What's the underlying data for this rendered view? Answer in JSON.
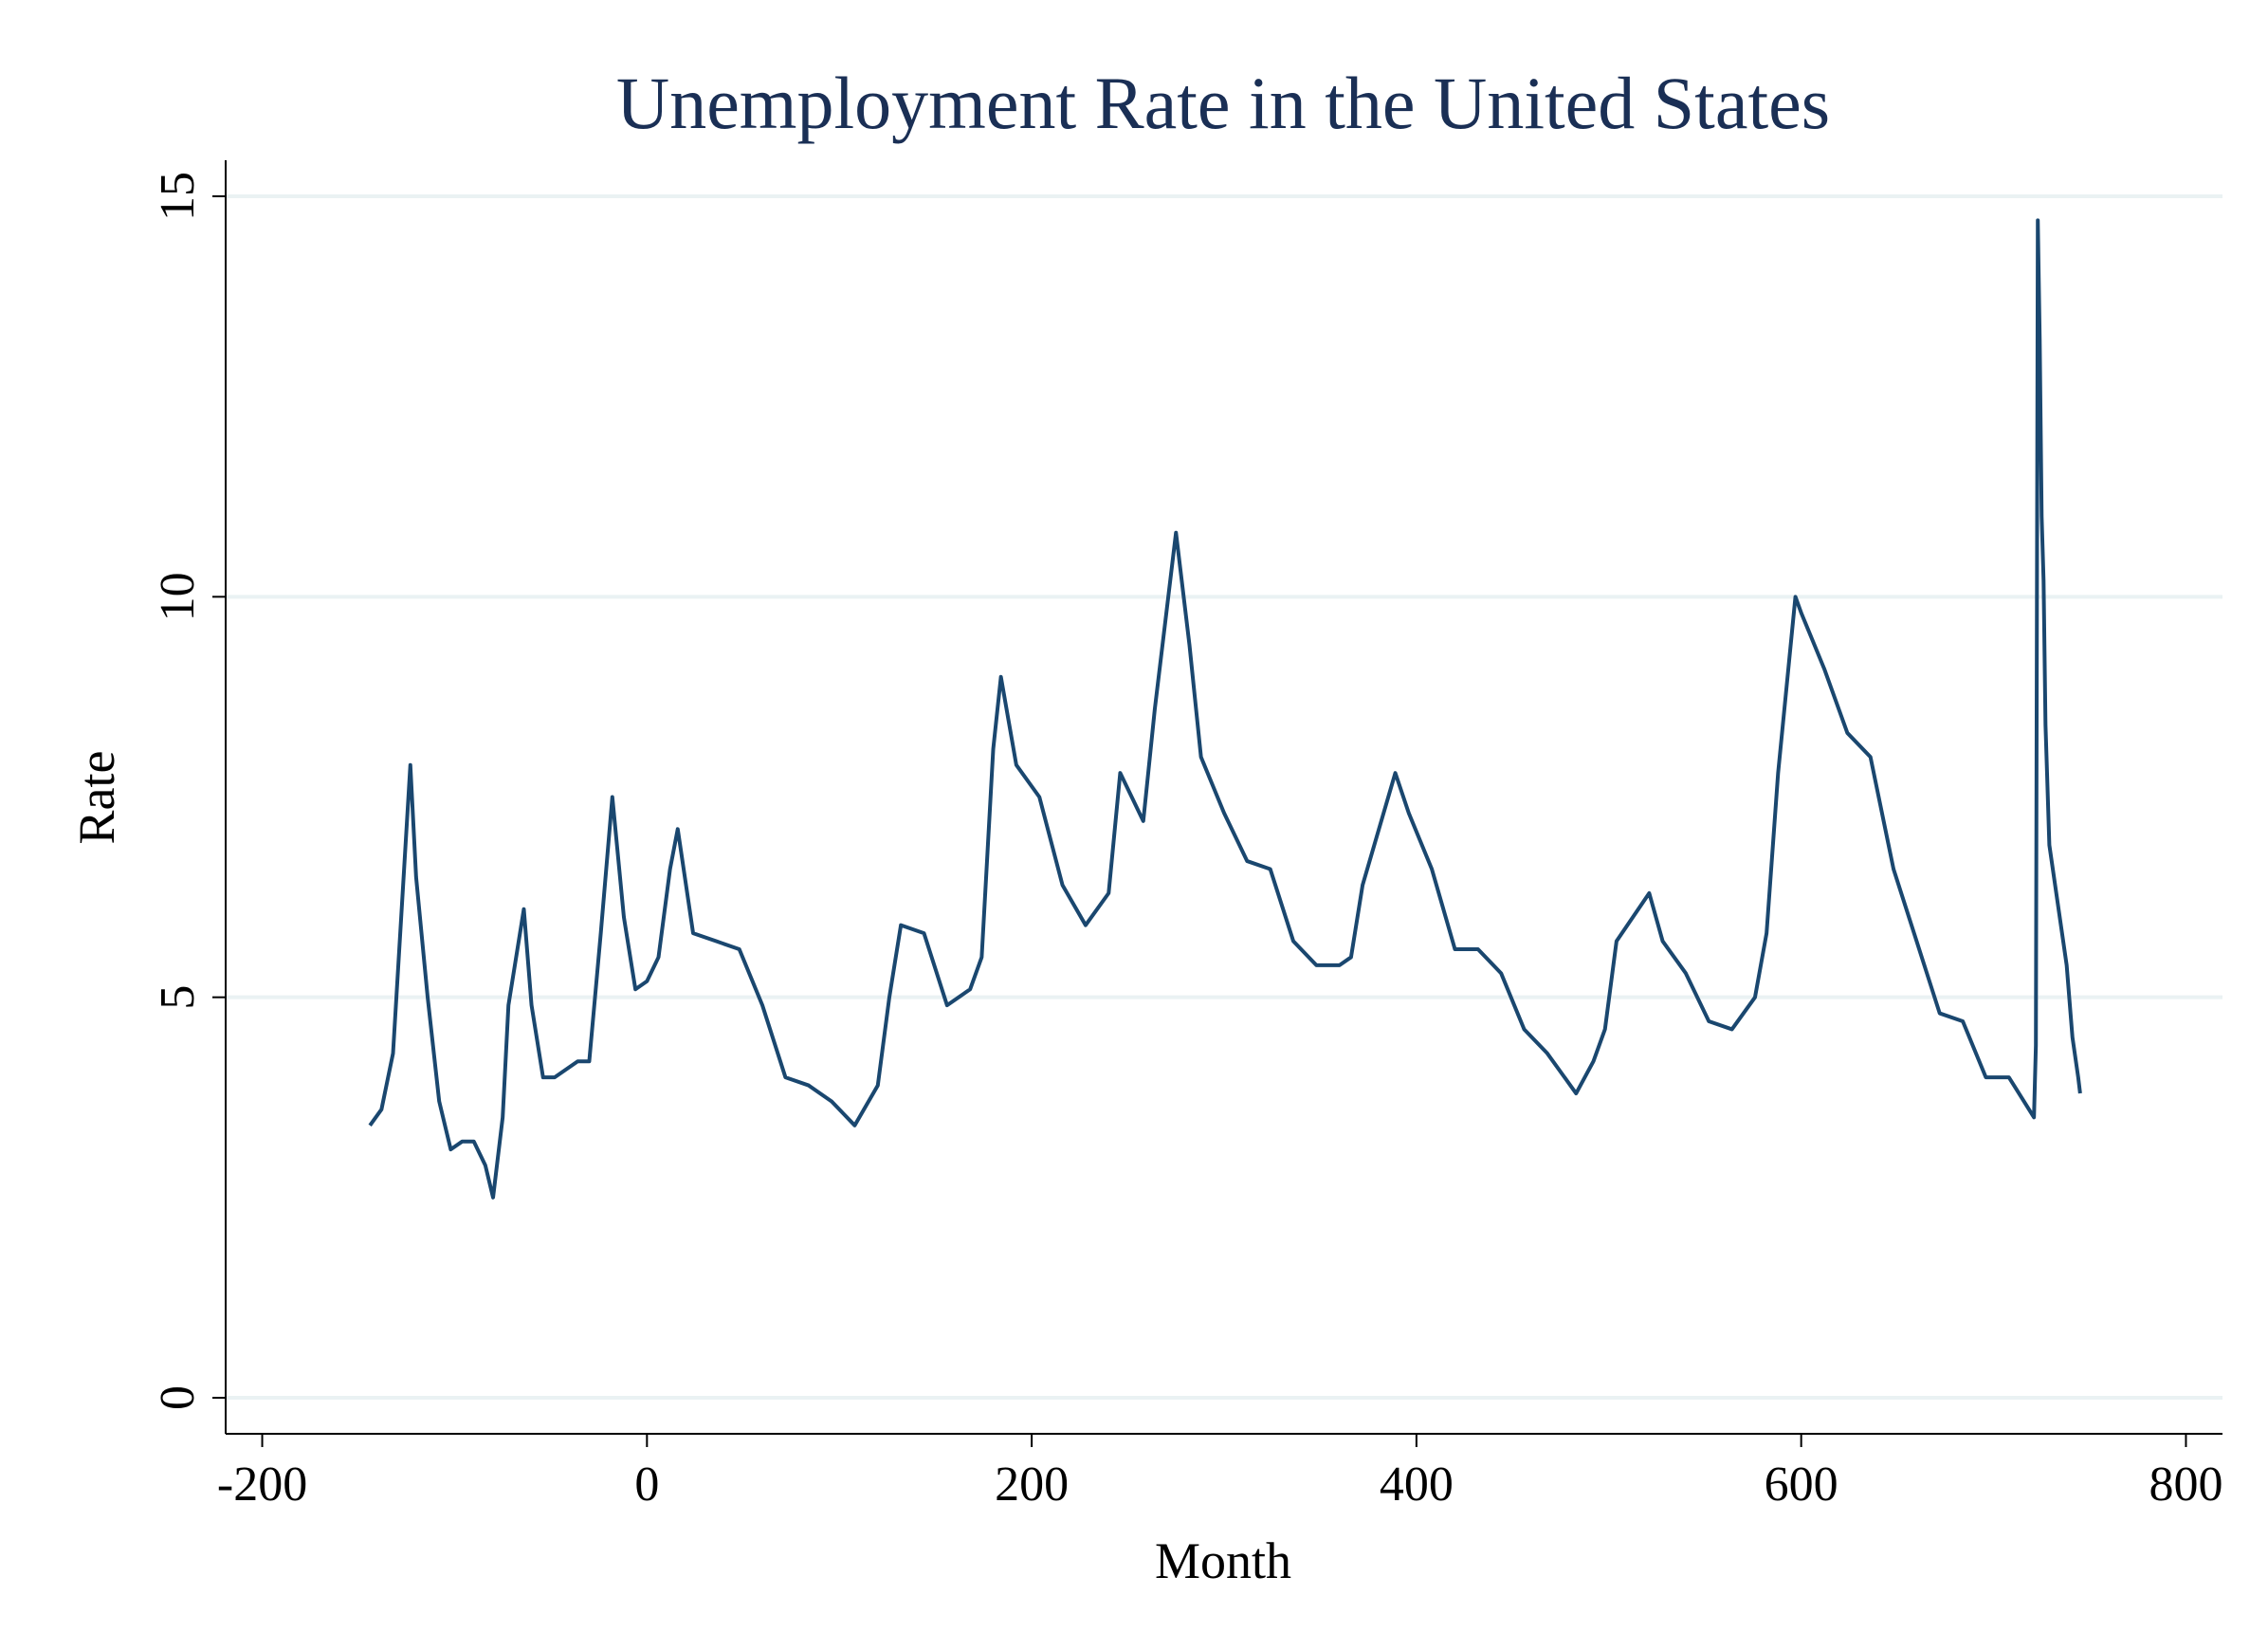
{
  "chart_data": {
    "type": "line",
    "title": "Unemployment Rate in the United States",
    "x_label": "Month",
    "y_label": "Rate",
    "x": [
      -144,
      -138,
      -132,
      -126,
      -123,
      -120,
      -114,
      -108,
      -102,
      -96,
      -90,
      -84,
      -80,
      -75,
      -72,
      -64,
      -60,
      -54,
      -48,
      -36,
      -30,
      -24,
      -18,
      -12,
      -6,
      0,
      6,
      12,
      16,
      24,
      36,
      48,
      60,
      72,
      84,
      96,
      108,
      120,
      126,
      132,
      144,
      156,
      168,
      174,
      180,
      184,
      192,
      204,
      216,
      228,
      240,
      246,
      252,
      258,
      264,
      270,
      275,
      282,
      288,
      300,
      312,
      324,
      336,
      348,
      360,
      366,
      372,
      389,
      396,
      408,
      420,
      432,
      444,
      456,
      468,
      483,
      492,
      498,
      504,
      521,
      528,
      540,
      552,
      564,
      576,
      582,
      588,
      597,
      600,
      612,
      624,
      636,
      648,
      660,
      672,
      684,
      696,
      708,
      721,
      722,
      723,
      724,
      725,
      726,
      727,
      729,
      732,
      738,
      741,
      744,
      745
    ],
    "series": [
      {
        "name": "Rate",
        "color": "#1a476f",
        "values": [
          3.4,
          3.6,
          4.3,
          6.7,
          7.9,
          6.5,
          5.0,
          3.7,
          3.1,
          3.2,
          3.2,
          2.9,
          2.5,
          3.5,
          4.9,
          6.1,
          4.9,
          4.0,
          4.0,
          4.2,
          4.2,
          5.8,
          7.5,
          6.0,
          5.1,
          5.2,
          5.5,
          6.6,
          7.1,
          5.8,
          5.7,
          5.6,
          4.9,
          4.0,
          3.9,
          3.7,
          3.4,
          3.9,
          5.0,
          5.9,
          5.8,
          4.9,
          5.1,
          5.5,
          8.1,
          9.0,
          7.9,
          7.5,
          6.4,
          5.9,
          6.3,
          7.8,
          7.5,
          7.2,
          8.6,
          9.8,
          10.8,
          9.4,
          8.0,
          7.3,
          6.7,
          6.6,
          5.7,
          5.4,
          5.4,
          5.5,
          6.4,
          7.8,
          7.3,
          6.6,
          5.6,
          5.6,
          5.3,
          4.6,
          4.3,
          3.8,
          4.2,
          4.6,
          5.7,
          6.3,
          5.7,
          5.3,
          4.7,
          4.6,
          5.0,
          5.8,
          7.8,
          10.0,
          9.8,
          9.1,
          8.3,
          8.0,
          6.6,
          5.7,
          4.8,
          4.7,
          4.0,
          4.0,
          3.5,
          4.4,
          14.7,
          13.2,
          11.0,
          10.2,
          8.4,
          6.9,
          6.4,
          5.4,
          4.5,
          4.0,
          3.8
        ]
      }
    ],
    "xlim": [
      -219,
      819
    ],
    "ylim": [
      -0.45,
      15.45
    ],
    "xticks": [
      -200,
      0,
      200,
      400,
      600,
      800
    ],
    "yticks": [
      0,
      5,
      10,
      15
    ],
    "grid": true
  }
}
